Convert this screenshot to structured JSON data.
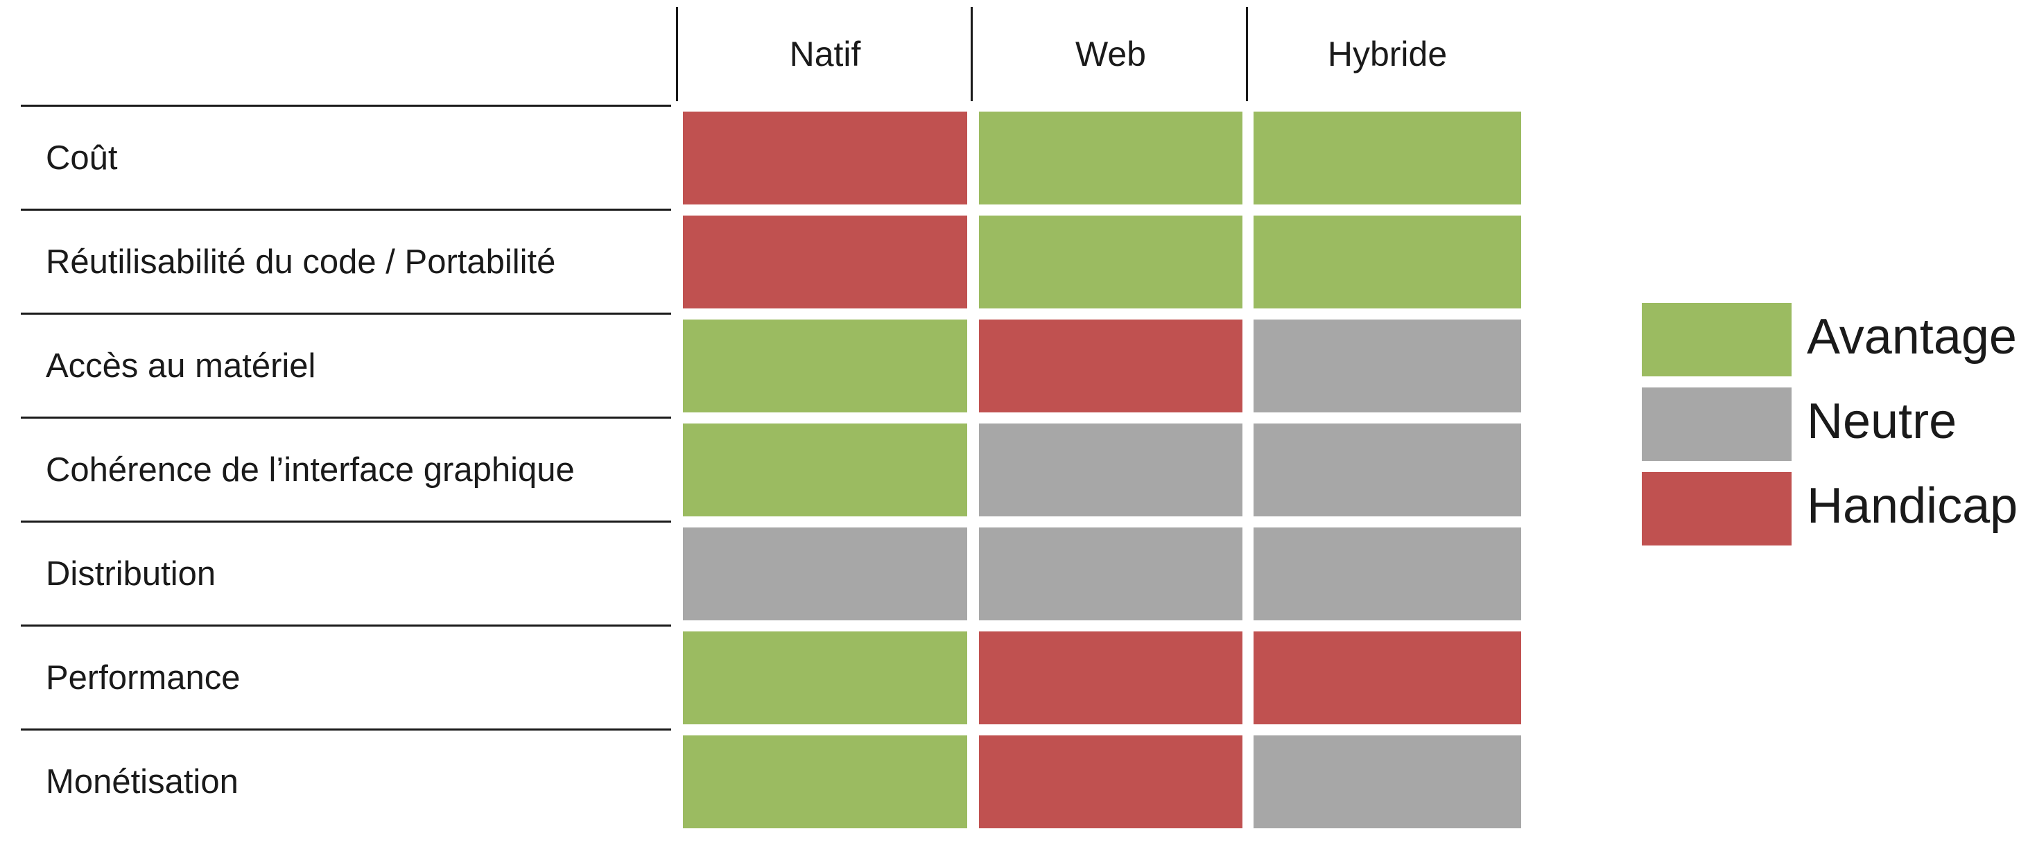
{
  "chart_data": {
    "type": "table",
    "title": "",
    "columns": [
      "Natif",
      "Web",
      "Hybride"
    ],
    "rows": [
      {
        "label": "Coût",
        "values": [
          "Handicap",
          "Avantage",
          "Avantage"
        ]
      },
      {
        "label": "Réutilisabilité du code / Portabilité",
        "values": [
          "Handicap",
          "Avantage",
          "Avantage"
        ]
      },
      {
        "label": "Accès au matériel",
        "values": [
          "Avantage",
          "Handicap",
          "Neutre"
        ]
      },
      {
        "label": "Cohérence de l’interface graphique",
        "values": [
          "Avantage",
          "Neutre",
          "Neutre"
        ]
      },
      {
        "label": "Distribution",
        "values": [
          "Neutre",
          "Neutre",
          "Neutre"
        ]
      },
      {
        "label": "Performance",
        "values": [
          "Avantage",
          "Handicap",
          "Handicap"
        ]
      },
      {
        "label": "Monétisation",
        "values": [
          "Avantage",
          "Handicap",
          "Neutre"
        ]
      }
    ],
    "legend": {
      "placement": "right",
      "entries": [
        {
          "label": "Avantage",
          "color": "#9bbb61"
        },
        {
          "label": "Neutre",
          "color": "#a7a7a7"
        },
        {
          "label": "Handicap",
          "color": "#c05150"
        }
      ]
    }
  }
}
